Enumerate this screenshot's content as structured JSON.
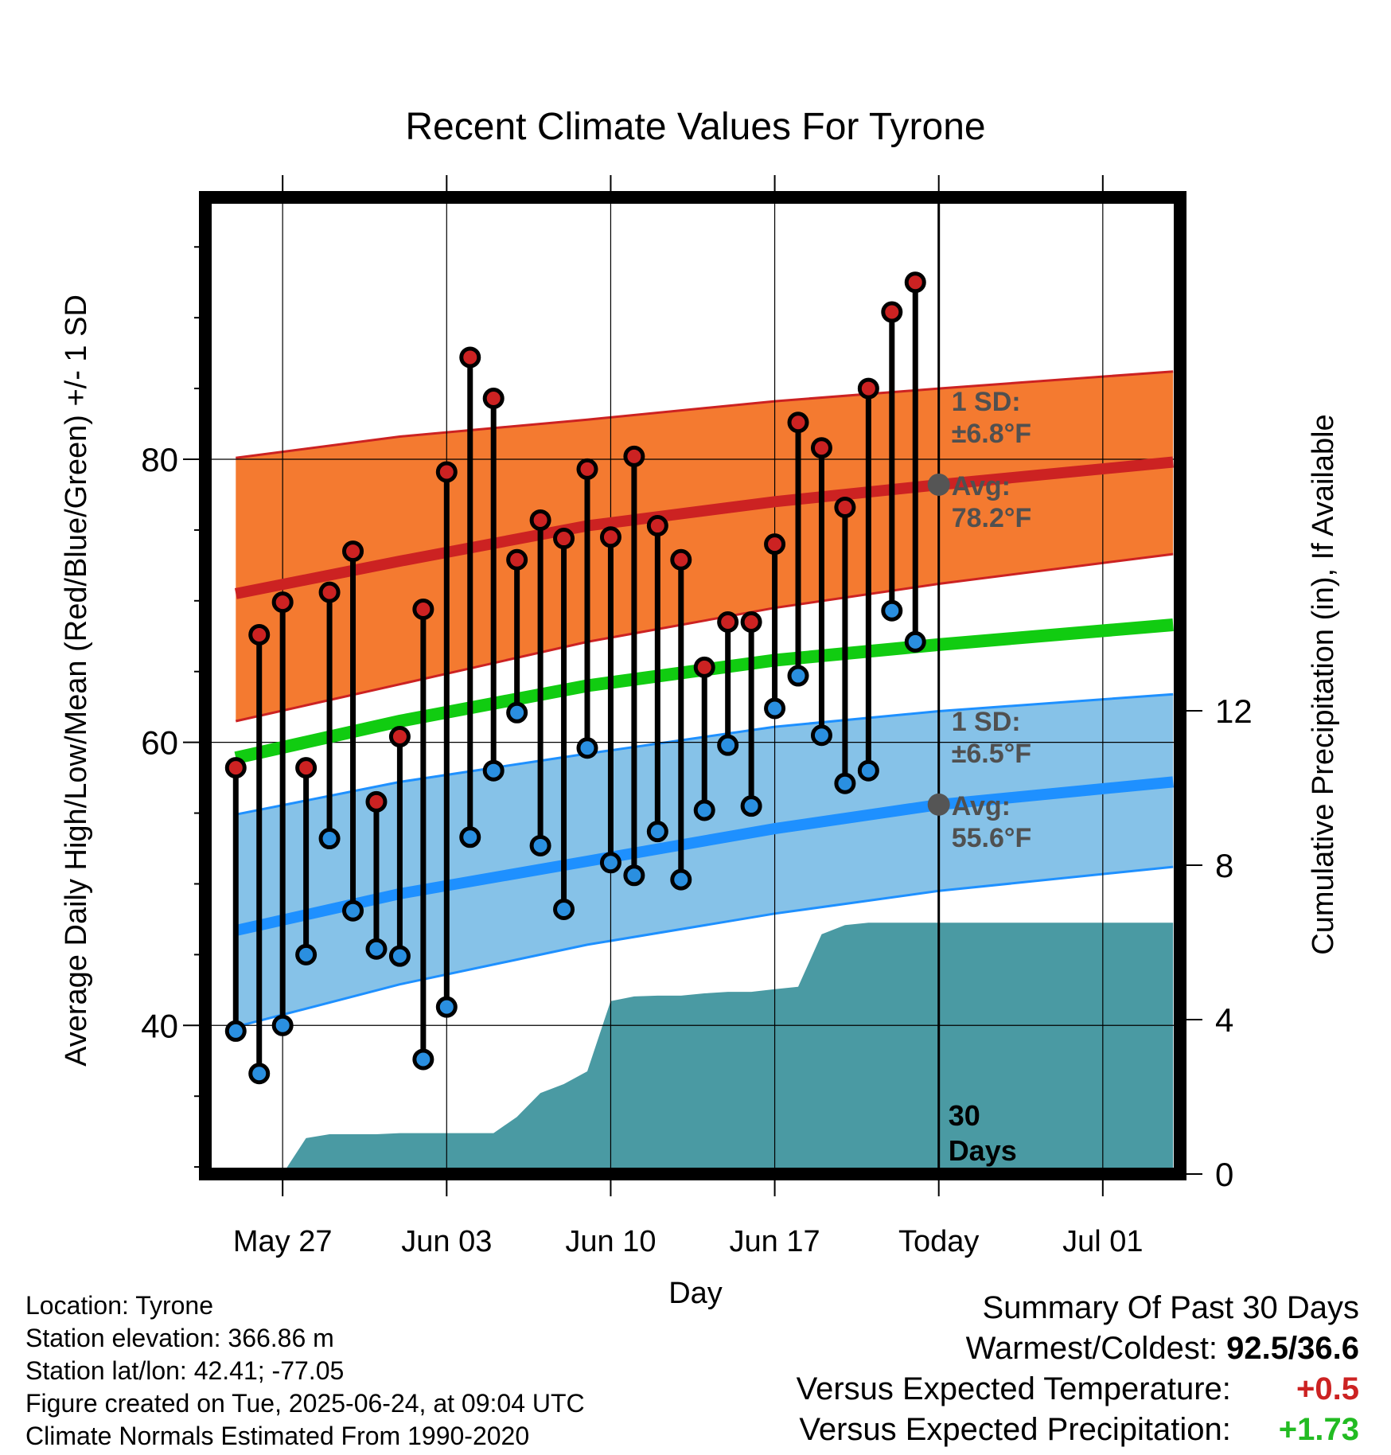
{
  "chart_data": {
    "type": "line",
    "title": "Recent Climate Values For Tyrone",
    "xlabel": "Day",
    "ylabel": "Average Daily High/Low/Mean (Red/Blue/Green) +/- 1 SD",
    "y2label": "Cumulative Precipitation (in), If Available",
    "x_tick_labels": [
      "May 27",
      "Jun 03",
      "Jun 10",
      "Jun 17",
      "Today",
      "Jul 01"
    ],
    "x_tick_days": [
      3,
      10,
      17,
      24,
      31,
      38
    ],
    "xlim": [
      -0.3,
      41.3
    ],
    "y_ticks": [
      40,
      60,
      80
    ],
    "ylim": [
      29.5,
      98.5
    ],
    "y2_ticks": [
      0,
      4,
      8,
      12
    ],
    "y2lim": [
      0,
      25.3
    ],
    "grid": true,
    "days": [
      1,
      2,
      3,
      4,
      5,
      6,
      7,
      8,
      9,
      10,
      11,
      12,
      13,
      14,
      15,
      16,
      17,
      18,
      19,
      20,
      21,
      22,
      23,
      24,
      25,
      26,
      27,
      28,
      29,
      30
    ],
    "series": [
      {
        "name": "High",
        "color": "#cc2222",
        "values": [
          58.2,
          67.6,
          69.9,
          58.2,
          70.6,
          73.5,
          55.8,
          60.4,
          69.4,
          79.1,
          87.2,
          84.3,
          72.9,
          75.7,
          74.4,
          79.3,
          74.5,
          80.2,
          75.3,
          72.9,
          65.3,
          68.5,
          68.5,
          74.0,
          82.6,
          80.8,
          76.6,
          85.0,
          90.4,
          92.5
        ]
      },
      {
        "name": "Low",
        "color": "#2a8fe0",
        "values": [
          39.6,
          36.6,
          40.0,
          45.0,
          53.2,
          48.1,
          45.4,
          44.9,
          37.6,
          41.3,
          53.3,
          58.0,
          62.1,
          52.7,
          48.2,
          59.6,
          51.5,
          50.6,
          53.7,
          50.3,
          55.2,
          59.8,
          55.5,
          62.4,
          64.7,
          60.5,
          57.1,
          58.0,
          69.3,
          67.1
        ]
      },
      {
        "name": "Normal High",
        "color": "#cc2222",
        "x": [
          1,
          8,
          16,
          24,
          31,
          41
        ],
        "values": [
          70.5,
          72.8,
          75.3,
          77.0,
          78.2,
          79.8
        ]
      },
      {
        "name": "Normal High +1 SD",
        "color": "#cc2222",
        "x": [
          1,
          8,
          16,
          24,
          31,
          41
        ],
        "values": [
          80.1,
          81.6,
          82.8,
          84.1,
          85.0,
          86.2
        ]
      },
      {
        "name": "Normal High -1 SD",
        "color": "#cc2222",
        "x": [
          1,
          8,
          16,
          24,
          31,
          41
        ],
        "values": [
          61.5,
          64.1,
          67.1,
          69.5,
          71.2,
          73.3
        ]
      },
      {
        "name": "Normal Mean",
        "color": "#11cc11",
        "x": [
          1,
          8,
          16,
          24,
          31,
          41
        ],
        "values": [
          58.9,
          61.5,
          64.0,
          65.8,
          66.9,
          68.3
        ]
      },
      {
        "name": "Normal Low",
        "color": "#1e90ff",
        "x": [
          1,
          8,
          16,
          24,
          31,
          41
        ],
        "values": [
          46.7,
          49.3,
          51.6,
          53.9,
          55.6,
          57.2
        ]
      },
      {
        "name": "Normal Low +1 SD",
        "color": "#1e90ff",
        "x": [
          1,
          8,
          16,
          24,
          31,
          41
        ],
        "values": [
          54.9,
          57.2,
          59.2,
          61.1,
          62.2,
          63.4
        ]
      },
      {
        "name": "Normal Low -1 SD",
        "color": "#1e90ff",
        "x": [
          1,
          8,
          16,
          24,
          31,
          41
        ],
        "values": [
          39.9,
          42.9,
          45.7,
          47.9,
          49.5,
          51.2
        ]
      },
      {
        "name": "Cumulative Precipitation",
        "color": "#4a9aa3",
        "axis": "y2",
        "x": [
          3,
          4,
          5,
          6,
          7,
          8,
          9,
          10,
          11,
          12,
          13,
          14,
          15,
          16,
          17,
          18,
          19,
          20,
          21,
          22,
          23,
          24,
          25,
          26,
          27,
          28,
          29,
          30,
          31,
          41
        ],
        "values": [
          0.0,
          0.93,
          1.03,
          1.03,
          1.03,
          1.06,
          1.06,
          1.06,
          1.06,
          1.06,
          1.48,
          2.1,
          2.33,
          2.66,
          4.48,
          4.6,
          4.62,
          4.62,
          4.68,
          4.72,
          4.72,
          4.79,
          4.85,
          6.21,
          6.45,
          6.51,
          6.51,
          6.51,
          6.51,
          6.51
        ]
      }
    ],
    "today_marker": {
      "day": 31,
      "label_line1": "30",
      "label_line2": "Days"
    },
    "annotations": {
      "high": {
        "sd_line1": "1 SD:",
        "sd_line2": "±6.8°F",
        "avg_line1": "Avg:",
        "avg_line2": "78.2°F",
        "avg_value": 78.2
      },
      "low": {
        "sd_line1": "1 SD:",
        "sd_line2": "±6.5°F",
        "avg_line1": "Avg:",
        "avg_line2": "55.6°F",
        "avg_value": 55.6
      }
    },
    "colors": {
      "high_band": "#f47a30",
      "high_line": "#cc2222",
      "low_band": "#86c2e8",
      "low_line": "#1e90ff",
      "mean_line": "#11cc11",
      "precip": "#4a9aa3",
      "high_dot": "#cc2222",
      "low_dot": "#2a8fe0",
      "avg_dot": "#555555",
      "annotation_text": "#505050"
    }
  },
  "footer": {
    "location": "Location: Tyrone",
    "elevation": "Station elevation: 366.86 m",
    "latlon": "Station lat/lon: 42.41; -77.05",
    "created": "Figure created on Tue, 2025-06-24, at 09:04 UTC",
    "normals": "Climate Normals Estimated From 1990-2020"
  },
  "summary": {
    "title": "Summary Of Past 30 Days",
    "warm_cold_label": "Warmest/Coldest:",
    "warm_cold_value": "92.5/36.6",
    "temp_label": "Versus Expected Temperature:",
    "temp_value": "+0.5",
    "temp_color": "#cc2222",
    "precip_label": "Versus Expected Precipitation:",
    "precip_value": "+1.73",
    "precip_color": "#22bb22"
  }
}
